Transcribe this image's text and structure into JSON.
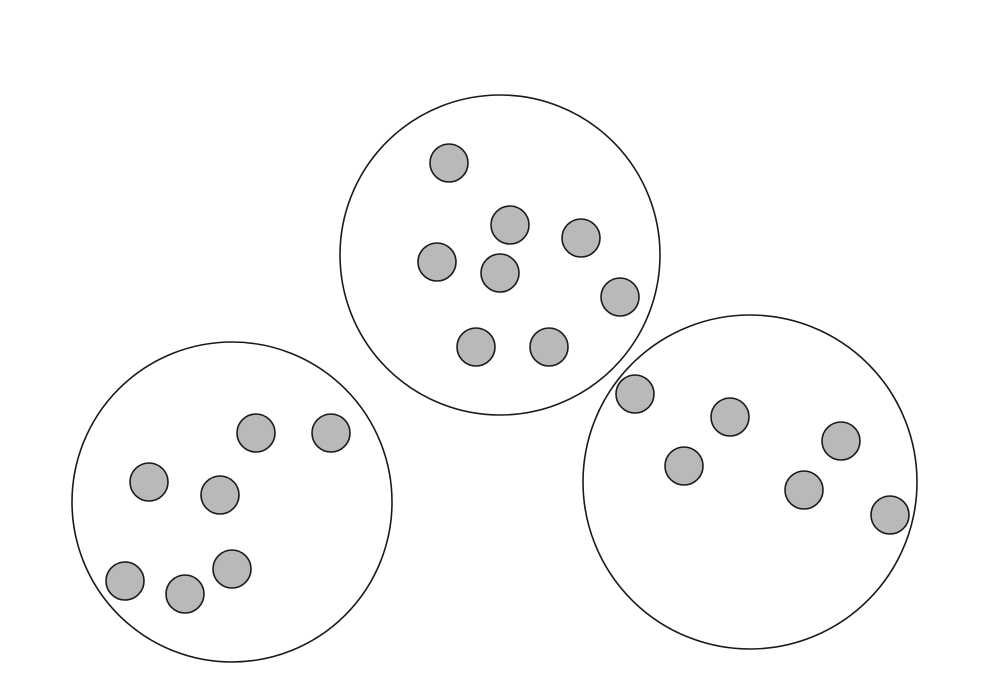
{
  "diagram": {
    "description_kind": "three-circles-with-dots",
    "style": {
      "background": "#ffffff",
      "outline_color": "#1a1a1a",
      "dot_fill": "#b9b9b9"
    },
    "groups": [
      {
        "name": "group-top",
        "member_count": 8
      },
      {
        "name": "group-bottom-left",
        "member_count": 7
      },
      {
        "name": "group-bottom-right",
        "member_count": 6
      }
    ]
  }
}
